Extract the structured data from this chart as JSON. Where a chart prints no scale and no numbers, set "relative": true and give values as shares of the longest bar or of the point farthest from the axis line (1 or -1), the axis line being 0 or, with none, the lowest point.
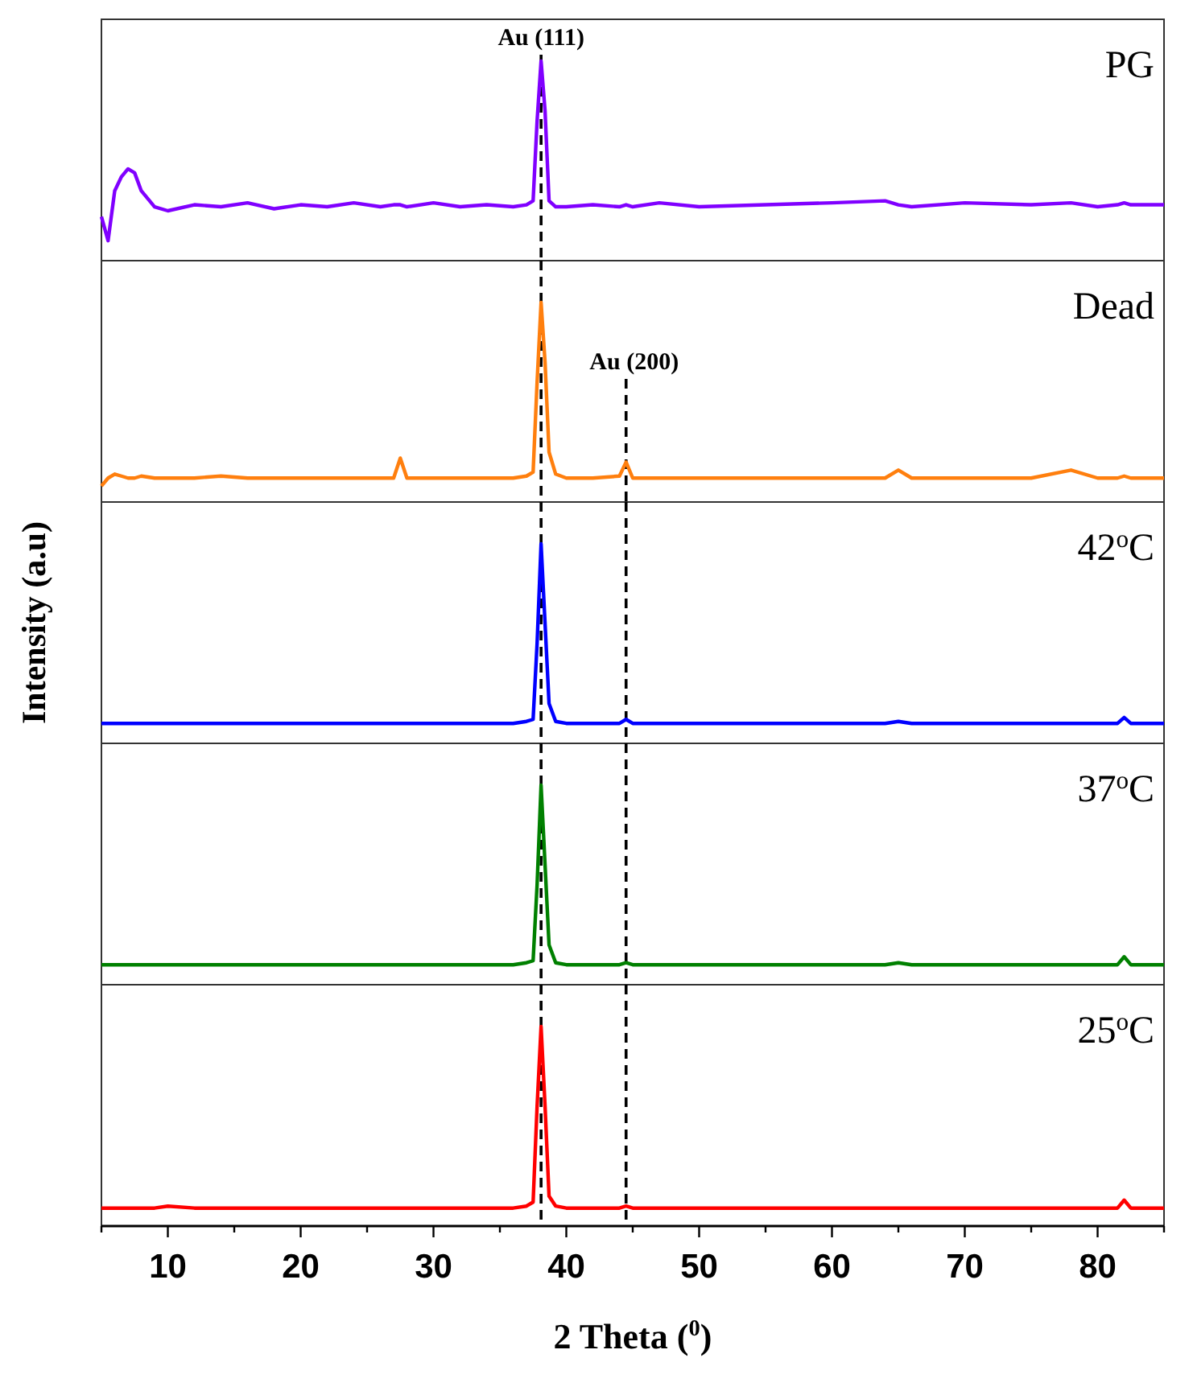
{
  "chart_data": [
    {
      "type": "line",
      "relative": true,
      "xlim": [
        5,
        85
      ],
      "tick_labels": false,
      "x": [
        5,
        5.5,
        6,
        6.5,
        7,
        7.5,
        8,
        9,
        10,
        12,
        14,
        16,
        18,
        20,
        22,
        24,
        26,
        27,
        27.5,
        28,
        30,
        32,
        34,
        36,
        37,
        37.5,
        37.8,
        38.1,
        38.4,
        38.7,
        39.2,
        40,
        42,
        44,
        44.5,
        45,
        47,
        50,
        55,
        60,
        64,
        65,
        66,
        70,
        75,
        78,
        80,
        81.5,
        82,
        82.5,
        85
      ],
      "title": "PG",
      "series": [
        {
          "color": "#8000ff",
          "values": [
            0.22,
            0.1,
            0.35,
            0.42,
            0.46,
            0.44,
            0.35,
            0.27,
            0.25,
            0.28,
            0.27,
            0.29,
            0.26,
            0.28,
            0.27,
            0.29,
            0.27,
            0.28,
            0.28,
            0.27,
            0.29,
            0.27,
            0.28,
            0.27,
            0.28,
            0.3,
            0.7,
            1,
            0.75,
            0.3,
            0.27,
            0.27,
            0.28,
            0.27,
            0.28,
            0.27,
            0.29,
            0.27,
            0.28,
            0.29,
            0.3,
            0.28,
            0.27,
            0.29,
            0.28,
            0.29,
            0.27,
            0.28,
            0.29,
            0.28,
            0.28
          ]
        }
      ],
      "ref_lines": [
        {
          "axis": "x",
          "value": 38.1,
          "label": "Au (111)"
        }
      ]
    },
    {
      "type": "line",
      "relative": true,
      "xlim": [
        5,
        85
      ],
      "tick_labels": false,
      "x": [
        5,
        5.5,
        6,
        6.5,
        7,
        7.5,
        8,
        9,
        10,
        12,
        14,
        16,
        18,
        20,
        22,
        24,
        26,
        27,
        27.5,
        28,
        30,
        32,
        34,
        36,
        37,
        37.5,
        37.8,
        38.1,
        38.4,
        38.7,
        39.2,
        40,
        42,
        44,
        44.5,
        45,
        47,
        50,
        55,
        60,
        64,
        65,
        66,
        70,
        75,
        78,
        80,
        81.5,
        82,
        82.5,
        85
      ],
      "title": "Dead",
      "series": [
        {
          "color": "#ff7f0e",
          "values": [
            0.08,
            0.12,
            0.14,
            0.13,
            0.12,
            0.12,
            0.13,
            0.12,
            0.12,
            0.12,
            0.13,
            0.12,
            0.12,
            0.12,
            0.12,
            0.12,
            0.12,
            0.12,
            0.22,
            0.12,
            0.12,
            0.12,
            0.12,
            0.12,
            0.13,
            0.15,
            0.6,
            1,
            0.7,
            0.25,
            0.14,
            0.12,
            0.12,
            0.13,
            0.2,
            0.12,
            0.12,
            0.12,
            0.12,
            0.12,
            0.12,
            0.16,
            0.12,
            0.12,
            0.12,
            0.16,
            0.12,
            0.12,
            0.13,
            0.12,
            0.12
          ]
        }
      ],
      "ref_lines": [
        {
          "axis": "x",
          "value": 38.1
        },
        {
          "axis": "x",
          "value": 44.5,
          "label": "Au (200)"
        }
      ]
    },
    {
      "type": "line",
      "relative": true,
      "xlim": [
        5,
        85
      ],
      "tick_labels": false,
      "ylabel": "Intensity (a.u)",
      "x": [
        5,
        5.5,
        6,
        6.5,
        7,
        7.5,
        8,
        9,
        10,
        12,
        14,
        16,
        18,
        20,
        22,
        24,
        26,
        27,
        27.5,
        28,
        30,
        32,
        34,
        36,
        37,
        37.5,
        37.8,
        38.1,
        38.4,
        38.7,
        39.2,
        40,
        42,
        44,
        44.5,
        45,
        47,
        50,
        55,
        60,
        64,
        65,
        66,
        70,
        75,
        78,
        80,
        81.5,
        82,
        82.5,
        85
      ],
      "title": "42$^{o}$C",
      "series": [
        {
          "color": "#0000ff",
          "values": [
            0.1,
            0.1,
            0.1,
            0.1,
            0.1,
            0.1,
            0.1,
            0.1,
            0.1,
            0.1,
            0.1,
            0.1,
            0.1,
            0.1,
            0.1,
            0.1,
            0.1,
            0.1,
            0.1,
            0.1,
            0.1,
            0.1,
            0.1,
            0.1,
            0.11,
            0.12,
            0.5,
            1,
            0.6,
            0.2,
            0.11,
            0.1,
            0.1,
            0.1,
            0.12,
            0.1,
            0.1,
            0.1,
            0.1,
            0.1,
            0.1,
            0.11,
            0.1,
            0.1,
            0.1,
            0.1,
            0.1,
            0.1,
            0.13,
            0.1,
            0.1
          ]
        }
      ],
      "ref_lines": [
        {
          "axis": "x",
          "value": 38.1
        },
        {
          "axis": "x",
          "value": 44.5
        }
      ]
    },
    {
      "type": "line",
      "relative": true,
      "xlim": [
        5,
        85
      ],
      "tick_labels": false,
      "x": [
        5,
        5.5,
        6,
        6.5,
        7,
        7.5,
        8,
        9,
        10,
        12,
        14,
        16,
        18,
        20,
        22,
        24,
        26,
        27,
        27.5,
        28,
        30,
        32,
        34,
        36,
        37,
        37.5,
        37.8,
        38.1,
        38.4,
        38.7,
        39.2,
        40,
        42,
        44,
        44.5,
        45,
        47,
        50,
        55,
        60,
        64,
        65,
        66,
        70,
        75,
        78,
        80,
        81.5,
        82,
        82.5,
        85
      ],
      "title": "37$^{o}$C",
      "series": [
        {
          "color": "#008000",
          "values": [
            0.1,
            0.1,
            0.1,
            0.1,
            0.1,
            0.1,
            0.1,
            0.1,
            0.1,
            0.1,
            0.1,
            0.1,
            0.1,
            0.1,
            0.1,
            0.1,
            0.1,
            0.1,
            0.1,
            0.1,
            0.1,
            0.1,
            0.1,
            0.1,
            0.11,
            0.12,
            0.5,
            1,
            0.6,
            0.2,
            0.11,
            0.1,
            0.1,
            0.1,
            0.11,
            0.1,
            0.1,
            0.1,
            0.1,
            0.1,
            0.1,
            0.11,
            0.1,
            0.1,
            0.1,
            0.1,
            0.1,
            0.1,
            0.14,
            0.1,
            0.1
          ]
        }
      ],
      "ref_lines": [
        {
          "axis": "x",
          "value": 38.1
        },
        {
          "axis": "x",
          "value": 44.5
        }
      ]
    },
    {
      "type": "line",
      "relative": true,
      "xlim": [
        5,
        85
      ],
      "tick_labels": "x",
      "xlabel": "2 Theta ($^{0}$)",
      "x": [
        5,
        5.5,
        6,
        6.5,
        7,
        7.5,
        8,
        9,
        10,
        12,
        14,
        16,
        18,
        20,
        22,
        24,
        26,
        27,
        27.5,
        28,
        30,
        32,
        34,
        36,
        37,
        37.5,
        37.8,
        38.1,
        38.4,
        38.7,
        39.2,
        40,
        42,
        44,
        44.5,
        45,
        47,
        50,
        55,
        60,
        64,
        65,
        66,
        70,
        75,
        78,
        80,
        81.5,
        82,
        82.5,
        85
      ],
      "xticks": [
        {
          "value": 5,
          "label": null
        },
        10,
        {
          "value": 15,
          "label": null
        },
        20,
        {
          "value": 25,
          "label": null
        },
        30,
        {
          "value": 35,
          "label": null
        },
        40,
        {
          "value": 45,
          "label": null
        },
        50,
        {
          "value": 55,
          "label": null
        },
        60,
        {
          "value": 65,
          "label": null
        },
        70,
        {
          "value": 75,
          "label": null
        },
        80,
        {
          "value": 85,
          "label": null
        }
      ],
      "title": "25$^{o}$C",
      "series": [
        {
          "color": "#ff0000",
          "values": [
            0.09,
            0.09,
            0.09,
            0.09,
            0.09,
            0.09,
            0.09,
            0.09,
            0.1,
            0.09,
            0.09,
            0.09,
            0.09,
            0.09,
            0.09,
            0.09,
            0.09,
            0.09,
            0.09,
            0.09,
            0.09,
            0.09,
            0.09,
            0.09,
            0.1,
            0.12,
            0.6,
            1,
            0.6,
            0.15,
            0.1,
            0.09,
            0.09,
            0.09,
            0.1,
            0.09,
            0.09,
            0.09,
            0.09,
            0.09,
            0.09,
            0.09,
            0.09,
            0.09,
            0.09,
            0.09,
            0.09,
            0.09,
            0.13,
            0.09,
            0.09
          ]
        }
      ],
      "ref_lines": [
        {
          "axis": "x",
          "value": 38.1
        },
        {
          "axis": "x",
          "value": 44.5
        }
      ]
    }
  ]
}
